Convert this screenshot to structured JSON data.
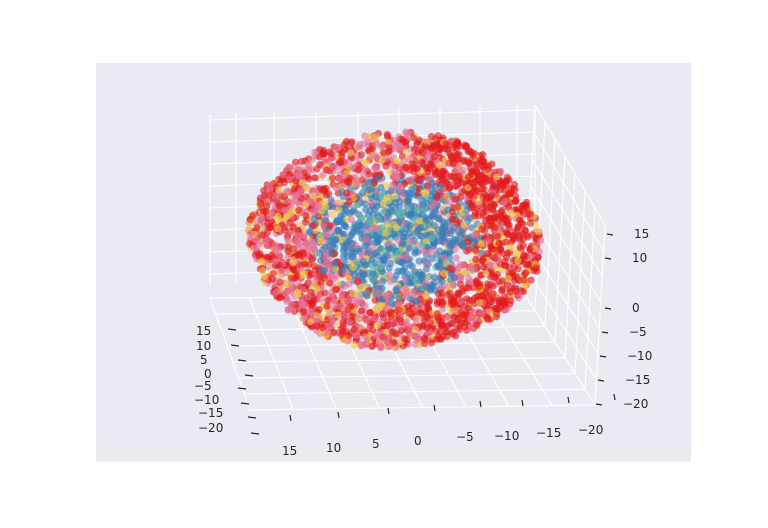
{
  "chart_data": {
    "type": "scatter",
    "projection": "3d",
    "title": "",
    "xlabel": "",
    "ylabel": "",
    "zlabel": "",
    "grid": true,
    "background_color": "#eaeaf2",
    "pane_color": "#eaeaf2",
    "grid_color": "#ffffff",
    "x_ticks": [
      15,
      10,
      5,
      0,
      -5,
      -10,
      -15,
      -20
    ],
    "y_ticks": [
      15,
      10,
      5,
      0,
      -5,
      -10,
      -15,
      -20
    ],
    "z_ticks": [
      15,
      10,
      5,
      0,
      -5,
      -10,
      -15,
      -20
    ],
    "x_tick_labels": [
      "15",
      "10",
      "5",
      "0",
      "−5",
      "−10",
      "−15",
      "−20"
    ],
    "y_tick_labels": [
      "15",
      "10",
      "5",
      "0",
      "−5",
      "−10",
      "−15",
      "−20"
    ],
    "z_tick_labels": [
      "15",
      "10",
      "5",
      "0",
      "−5",
      "−10",
      "−15",
      "−20"
    ],
    "xlim": [
      -22,
      18
    ],
    "ylim": [
      -22,
      18
    ],
    "zlim": [
      -22,
      18
    ],
    "description": "",
    "series": [
      {
        "color": "#e41a1c",
        "share": 0.42,
        "region": "outer shell, dense on right side"
      },
      {
        "color": "#e7739a",
        "share": 0.22,
        "region": "outer shell, left side"
      },
      {
        "color": "#f0c94a",
        "share": 0.08,
        "region": "scattered throughout"
      },
      {
        "color": "#377eb8",
        "share": 0.25,
        "region": "inner core"
      },
      {
        "color": "#66c2a5",
        "share": 0.03,
        "region": "inner core mixed"
      }
    ]
  }
}
